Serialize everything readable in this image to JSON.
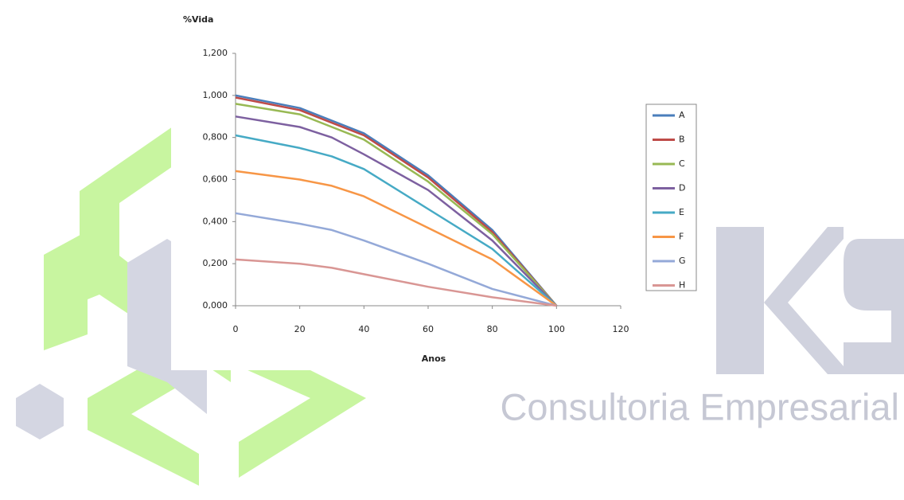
{
  "background": {
    "text": "Consultoria Empresarial"
  },
  "chart_data": {
    "type": "line",
    "title": "%Vida",
    "x_label": "Anos",
    "x": [
      0,
      20,
      30,
      40,
      60,
      80,
      100
    ],
    "series": [
      {
        "name": "A",
        "color": "#4a7ebb",
        "values": [
          1.0,
          0.94,
          0.88,
          0.82,
          0.62,
          0.36,
          0
        ]
      },
      {
        "name": "B",
        "color": "#be4b48",
        "values": [
          0.99,
          0.93,
          0.87,
          0.81,
          0.61,
          0.35,
          0
        ]
      },
      {
        "name": "C",
        "color": "#98b954",
        "values": [
          0.96,
          0.91,
          0.85,
          0.79,
          0.59,
          0.34,
          0
        ]
      },
      {
        "name": "D",
        "color": "#7d60a0",
        "values": [
          0.9,
          0.85,
          0.8,
          0.72,
          0.55,
          0.31,
          0
        ]
      },
      {
        "name": "E",
        "color": "#46aac5",
        "values": [
          0.81,
          0.75,
          0.71,
          0.65,
          0.46,
          0.27,
          0
        ]
      },
      {
        "name": "F",
        "color": "#f79646",
        "values": [
          0.64,
          0.6,
          0.57,
          0.52,
          0.37,
          0.22,
          0
        ]
      },
      {
        "name": "G",
        "color": "#94a9d8",
        "values": [
          0.44,
          0.39,
          0.36,
          0.31,
          0.2,
          0.08,
          0
        ]
      },
      {
        "name": "H",
        "color": "#d99694",
        "values": [
          0.22,
          0.2,
          0.18,
          0.15,
          0.09,
          0.04,
          0
        ]
      }
    ],
    "xlim": [
      0,
      120
    ],
    "xticks": [
      0,
      20,
      40,
      60,
      80,
      100,
      120
    ],
    "ylim": [
      0,
      1.2
    ],
    "yticks": [
      {
        "value": 0,
        "label": "0,000"
      },
      {
        "value": 0.2,
        "label": "0,200"
      },
      {
        "value": 0.4,
        "label": "0,400"
      },
      {
        "value": 0.6,
        "label": "0,600"
      },
      {
        "value": 0.8,
        "label": "0,800"
      },
      {
        "value": 1.0,
        "label": "1,000"
      },
      {
        "value": 1.2,
        "label": "1,200"
      }
    ],
    "grid": false,
    "legend": "right"
  }
}
